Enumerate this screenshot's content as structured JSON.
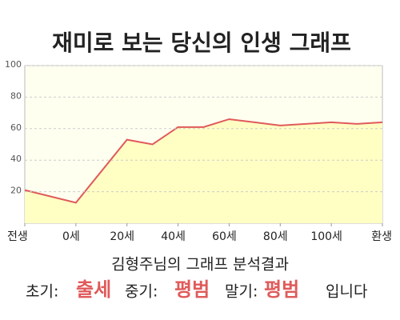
{
  "chart_data": {
    "type": "area",
    "title": "재미로 보는 당신의 인생 그래프",
    "x": [
      -20,
      0,
      20,
      30,
      40,
      50,
      60,
      70,
      80,
      90,
      100,
      110,
      120
    ],
    "values": [
      21,
      13,
      53,
      50,
      61,
      61,
      66,
      64,
      62,
      63,
      64,
      63,
      64
    ],
    "color": "#e05a5a",
    "fill_color": "#ffffc4",
    "xlim": [
      -20,
      120
    ],
    "xticks": [
      {
        "value": -20,
        "label": "전생"
      },
      {
        "value": 0,
        "label": "0세"
      },
      {
        "value": 20,
        "label": "20세"
      },
      {
        "value": 40,
        "label": "40세"
      },
      {
        "value": 60,
        "label": "60세"
      },
      {
        "value": 80,
        "label": "80세"
      },
      {
        "value": 100,
        "label": "100세"
      },
      {
        "value": 120,
        "label": "환생"
      }
    ],
    "ylim": [
      0,
      100
    ],
    "yticks": [
      20,
      40,
      60,
      80,
      100
    ],
    "grid": true
  },
  "analysis": {
    "title": "김형주님의 그래프 분석결과",
    "items": [
      {
        "label": "초기:",
        "value": "출세"
      },
      {
        "label": "중기:",
        "value": "평범"
      },
      {
        "label": "말기:",
        "value": "평범"
      }
    ],
    "suffix": "입니다"
  }
}
